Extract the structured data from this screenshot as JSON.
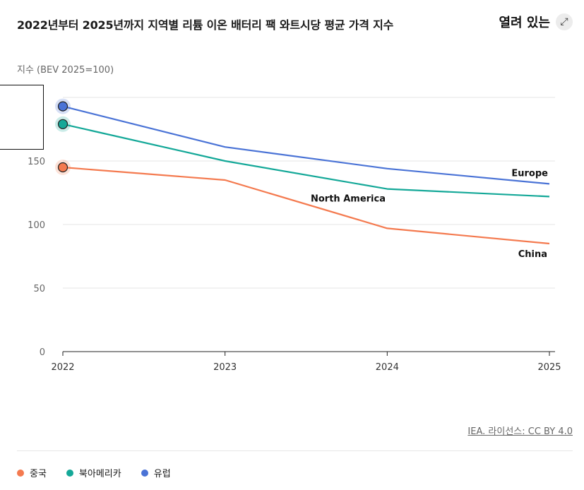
{
  "header": {
    "title": "2022년부터 2025년까지 지역별 리튬 이온 배터리 팩 와트시당 평균 가격 지수",
    "open_label": "열려 있는",
    "open_icon": "expand-arrows-icon"
  },
  "source": {
    "text": "IEA. 라이선스: CC BY 4.0"
  },
  "legend": [
    {
      "label": "중국",
      "color": "#f47a4f"
    },
    {
      "label": "북아메리카",
      "color": "#14a898"
    },
    {
      "label": "유럽",
      "color": "#4a73d6"
    }
  ],
  "chart_data": {
    "type": "line",
    "ylabel": "지수 (BEV 2025=100)",
    "x": [
      "2022",
      "2023",
      "2024",
      "2025"
    ],
    "ylim": [
      0,
      200
    ],
    "yticks": [
      0,
      50,
      100,
      150
    ],
    "grid": true,
    "series": [
      {
        "name": "China",
        "color": "#f47a4f",
        "values": [
          145,
          135,
          97,
          85
        ]
      },
      {
        "name": "North America",
        "color": "#14a898",
        "values": [
          179,
          150,
          128,
          122
        ]
      },
      {
        "name": "Europe",
        "color": "#4a73d6",
        "values": [
          193,
          161,
          144,
          132
        ]
      }
    ]
  }
}
